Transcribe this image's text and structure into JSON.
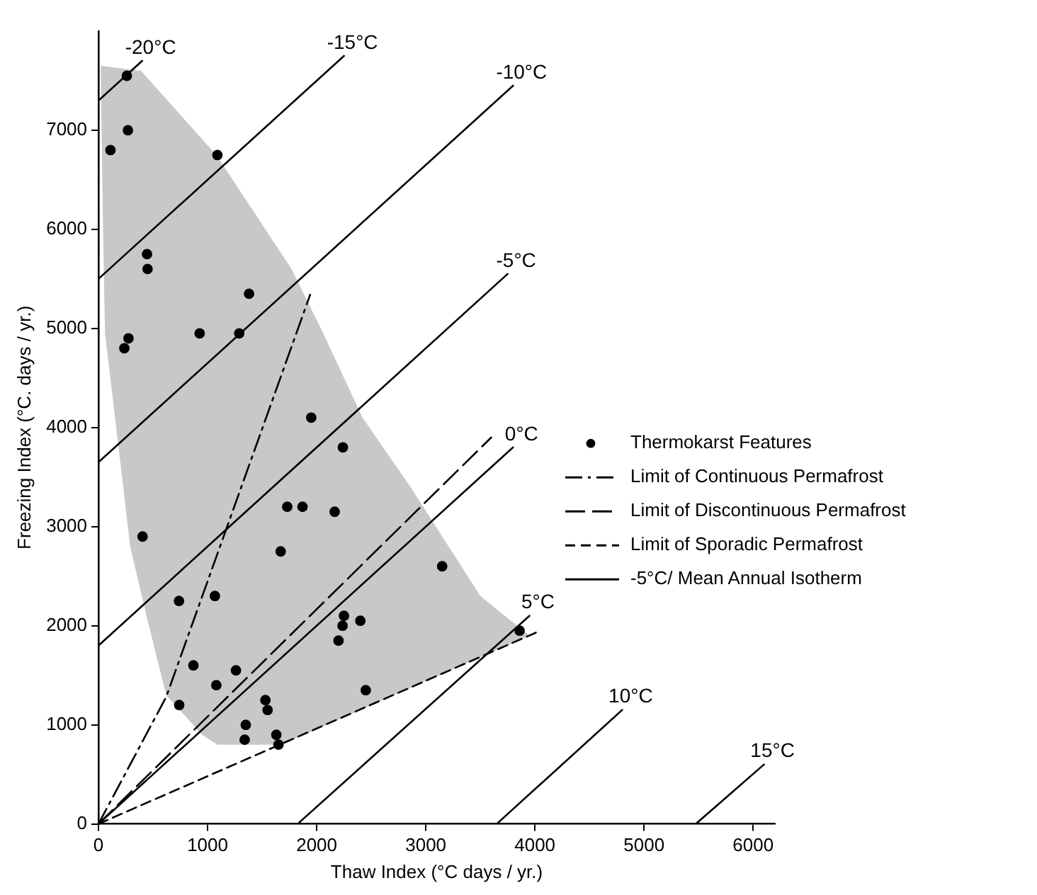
{
  "chart_data": {
    "type": "scatter",
    "xlabel": "Thaw Index (°C days / yr.)",
    "ylabel": "Freezing Index (°C. days / yr.)",
    "xlim": [
      0,
      6200
    ],
    "ylim": [
      0,
      8000
    ],
    "xticks": [
      0,
      1000,
      2000,
      3000,
      4000,
      5000,
      6000
    ],
    "yticks": [
      0,
      1000,
      2000,
      3000,
      4000,
      5000,
      6000,
      7000
    ],
    "grid": false,
    "legend": "right",
    "series": [
      {
        "type": "area",
        "color": "#c8c8c8",
        "x": [
          20,
          390,
          1080,
          1770,
          2060,
          2420,
          2860,
          3500,
          3950,
          1680,
          1090,
          950,
          620,
          440,
          290,
          200,
          60,
          40
        ],
        "values": [
          7650,
          7600,
          6750,
          5600,
          4950,
          4100,
          3400,
          2300,
          1900,
          800,
          800,
          900,
          1300,
          2100,
          2800,
          3650,
          4950,
          6100
        ]
      },
      {
        "name": "Thermokarst Features",
        "color": "#000000",
        "marker": "circle",
        "x": [
          260,
          270,
          110,
          1090,
          445,
          450,
          1380,
          275,
          237,
          927,
          1290,
          1950,
          2240,
          1730,
          1870,
          2165,
          404,
          1670,
          3150,
          738,
          1067,
          2250,
          2237,
          2400,
          2200,
          870,
          1260,
          1080,
          740,
          1530,
          1550,
          1350,
          2450,
          1340,
          1630,
          1650,
          3860
        ],
        "values": [
          7550,
          7000,
          6800,
          6750,
          5750,
          5600,
          5350,
          4900,
          4800,
          4950,
          4950,
          4100,
          3800,
          3200,
          3200,
          3150,
          2900,
          2750,
          2600,
          2250,
          2300,
          2100,
          2000,
          2050,
          1850,
          1600,
          1550,
          1400,
          1200,
          1250,
          1150,
          1000,
          1350,
          850,
          900,
          800,
          1950
        ]
      },
      {
        "type": "line",
        "name": "Limit of Continuous Permafrost",
        "color": "#000000",
        "line_style": "dashdot",
        "x": [
          0,
          620,
          1940
        ],
        "values": [
          0,
          1280,
          5340
        ]
      },
      {
        "type": "line",
        "name": "Limit of Discontinuous Permafrost",
        "color": "#000000",
        "line_style": "longdash",
        "x": [
          0,
          3600
        ],
        "values": [
          0,
          3900
        ]
      },
      {
        "type": "line",
        "name": "Limit of Sporadic Permafrost",
        "color": "#000000",
        "line_style": "dashed",
        "x": [
          0,
          4050
        ],
        "values": [
          0,
          1950
        ]
      },
      {
        "type": "line",
        "color": "#000000",
        "line_style": "solid",
        "x": [
          0,
          400
        ],
        "values": [
          7300,
          7700
        ]
      },
      {
        "type": "line",
        "color": "#000000",
        "line_style": "solid",
        "x": [
          0,
          2250
        ],
        "values": [
          5500,
          7750
        ]
      },
      {
        "type": "line",
        "color": "#000000",
        "line_style": "solid",
        "x": [
          0,
          3800
        ],
        "values": [
          3650,
          7450
        ]
      },
      {
        "type": "line",
        "name": "-5°C/ Mean Annual Isotherm",
        "color": "#000000",
        "line_style": "solid",
        "x": [
          0,
          3750
        ],
        "values": [
          1800,
          5550
        ]
      },
      {
        "type": "line",
        "color": "#000000",
        "line_style": "solid",
        "x": [
          0,
          3800
        ],
        "values": [
          0,
          3800
        ]
      },
      {
        "type": "line",
        "color": "#000000",
        "line_style": "solid",
        "x": [
          1825,
          3950
        ],
        "values": [
          0,
          2100
        ]
      },
      {
        "type": "line",
        "color": "#000000",
        "line_style": "solid",
        "x": [
          3650,
          4800
        ],
        "values": [
          0,
          1150
        ]
      },
      {
        "type": "line",
        "color": "#000000",
        "line_style": "solid",
        "x": [
          5475,
          6100
        ],
        "values": [
          0,
          600
        ]
      }
    ],
    "annotations": [
      {
        "text": "-20°C",
        "x": 400,
        "y": 7700
      },
      {
        "text": "-15°C",
        "x": 2250,
        "y": 7750
      },
      {
        "text": "-10°C",
        "x": 3800,
        "y": 7450
      },
      {
        "text": "-5°C",
        "x": 3750,
        "y": 5550
      },
      {
        "text": "0°C",
        "x": 3800,
        "y": 3800
      },
      {
        "text": "5°C",
        "x": 3950,
        "y": 2100
      },
      {
        "text": "10°C",
        "x": 4800,
        "y": 1150
      },
      {
        "text": "15°C",
        "x": 6100,
        "y": 600
      }
    ]
  }
}
